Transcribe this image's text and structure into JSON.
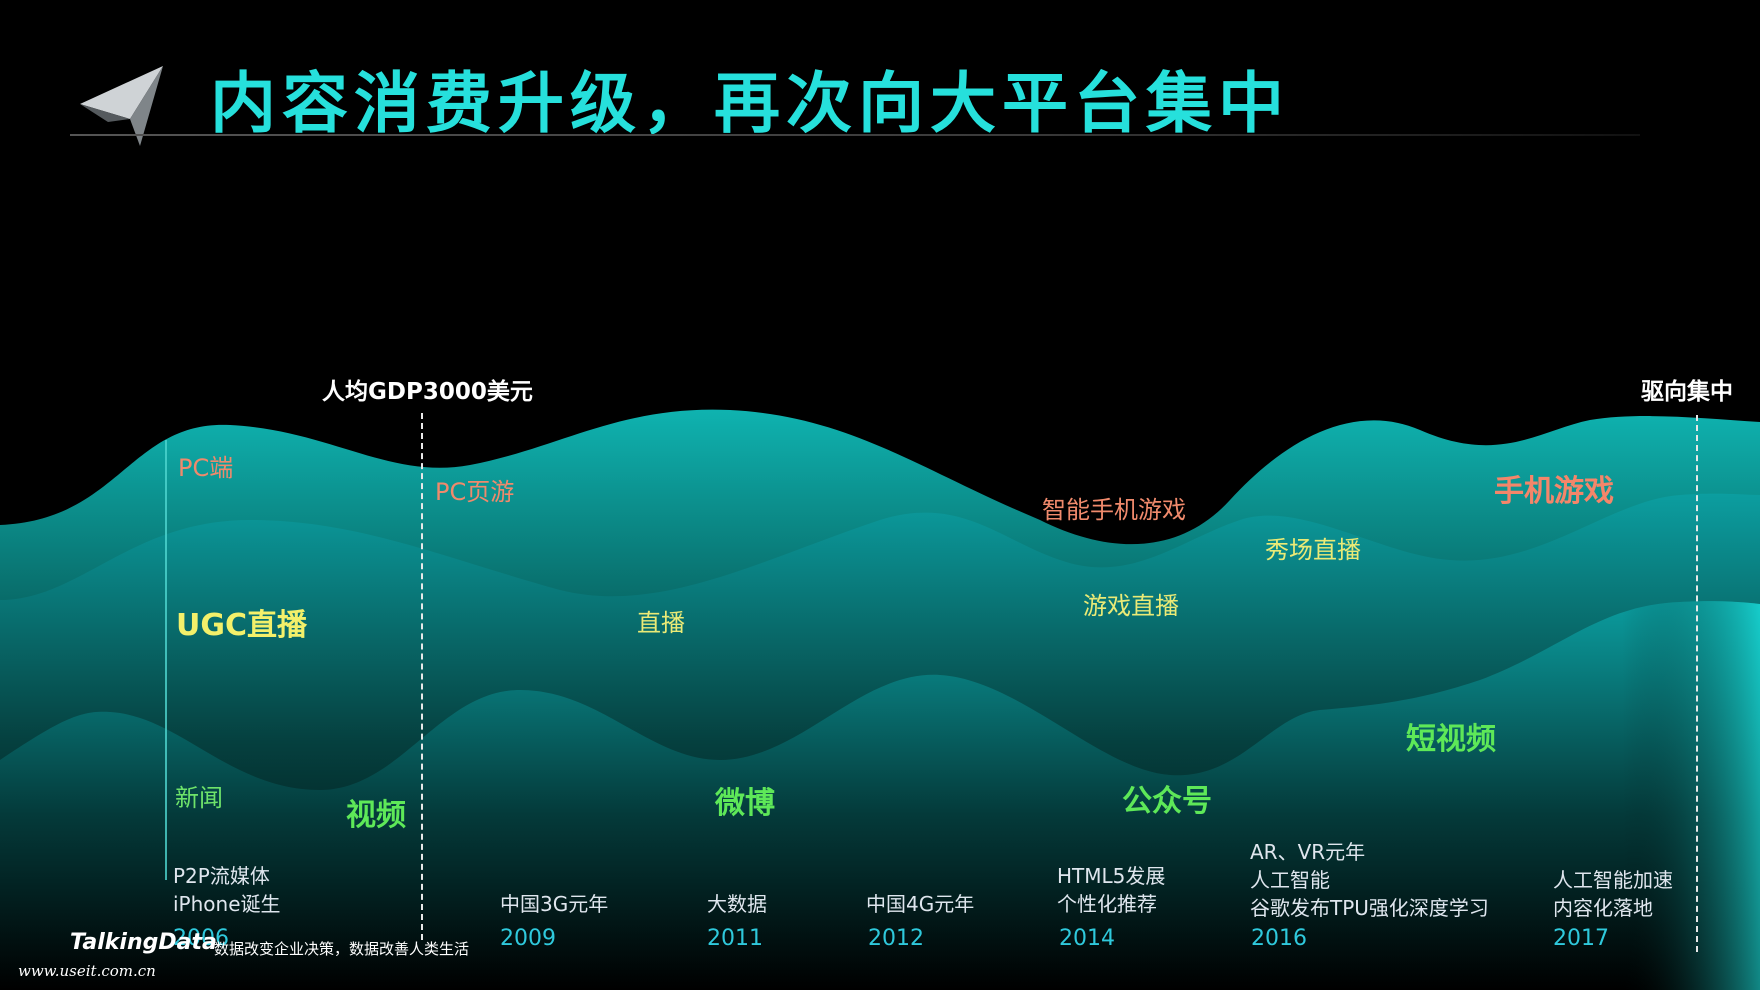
{
  "title": "内容消费升级，再次向大平台集中",
  "markers": {
    "gdp": "人均GDP3000美元",
    "concentrate": "驱向集中"
  },
  "bands": {
    "top": [
      "PC端",
      "PC页游",
      "智能手机游戏",
      "手机游戏"
    ],
    "middle": [
      "UGC直播",
      "直播",
      "秀场直播",
      "游戏直播"
    ],
    "bottom": [
      "新闻",
      "视频",
      "微博",
      "公众号",
      "短视频"
    ]
  },
  "timeline": [
    {
      "events": [
        "P2P流媒体",
        "iPhone诞生"
      ],
      "year": "2006"
    },
    {
      "events": [
        "中国3G元年"
      ],
      "year": "2009"
    },
    {
      "events": [
        "大数据"
      ],
      "year": "2011"
    },
    {
      "events": [
        "中国4G元年"
      ],
      "year": "2012"
    },
    {
      "events": [
        "HTML5发展",
        "个性化推荐"
      ],
      "year": "2014"
    },
    {
      "events": [
        "AR、VR元年",
        "人工智能",
        "谷歌发布TPU强化深度学习"
      ],
      "year": "2016"
    },
    {
      "events": [
        "人工智能加速",
        "内容化落地"
      ],
      "year": "2017"
    }
  ],
  "footer": {
    "brand": "TalkingData",
    "slogan": "数据改变企业决策，数据改善人类生活",
    "site": "www.useit.com.cn"
  },
  "colors": {
    "accent": "#26e0dc",
    "wave": "#0fb3b0",
    "top_labels": "#f08a6c",
    "middle_labels": "#f3f06a",
    "bottom_labels": "#5ee858"
  }
}
